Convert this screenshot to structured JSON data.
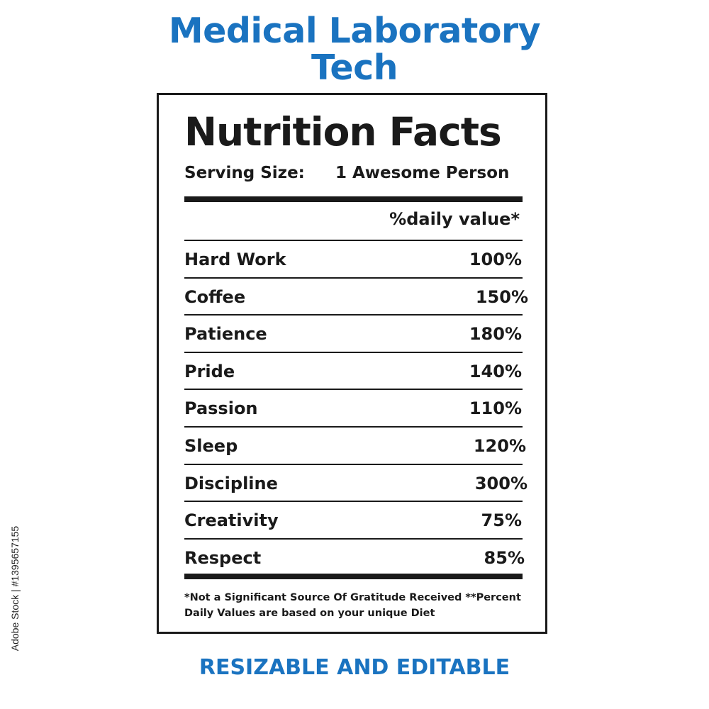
{
  "header": {
    "title_line1": "Medical Laboratory",
    "title_line2": "Tech"
  },
  "label": {
    "heading": "Nutrition Facts",
    "serving_label": "Serving Size:",
    "serving_value": "1 Awesome Person",
    "daily_value_header": "%daily value*",
    "items": [
      {
        "name": "Hard Work",
        "value": "100%"
      },
      {
        "name": "Coffee",
        "value": "150%"
      },
      {
        "name": "Patience",
        "value": "180%"
      },
      {
        "name": "Pride",
        "value": "140%"
      },
      {
        "name": "Passion",
        "value": "110%"
      },
      {
        "name": "Sleep",
        "value": "120%"
      },
      {
        "name": "Discipline",
        "value": "300%"
      },
      {
        "name": "Creativity",
        "value": "75%"
      },
      {
        "name": "Respect",
        "value": "85%"
      }
    ],
    "footnote": "*Not a Significant Source Of Gratitude Received **Percent Daily Values are based on your  unique Diet"
  },
  "footer": {
    "text": "RESIZABLE AND EDITABLE"
  },
  "watermark": {
    "stock_id": "Adobe Stock | #1395657155"
  },
  "colors": {
    "accent": "#1a73c0",
    "ink": "#1a1a1a"
  }
}
